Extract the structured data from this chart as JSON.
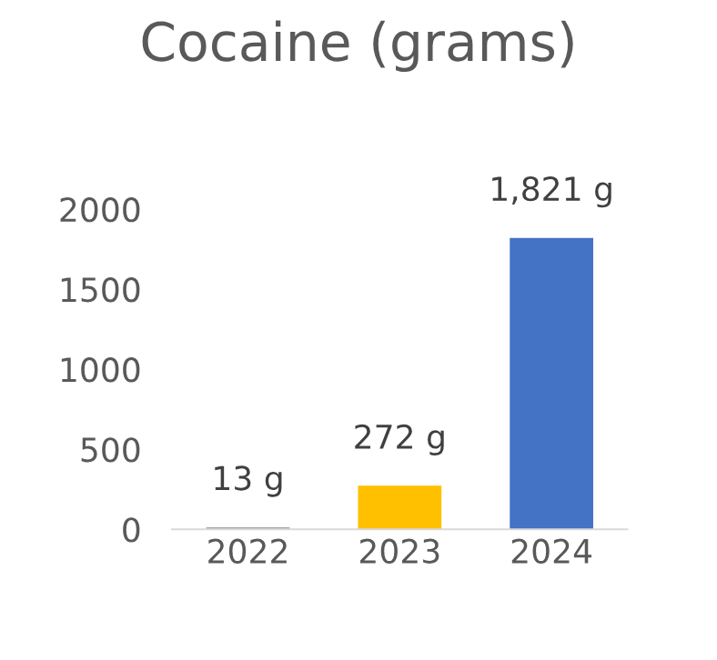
{
  "chart_data": {
    "type": "bar",
    "title": "Cocaine (grams)",
    "categories": [
      "2022",
      "2023",
      "2024"
    ],
    "values": [
      13,
      272,
      1821
    ],
    "colors": [
      "#a5a5a5",
      "#ffc000",
      "#4472c4"
    ],
    "value_labels": [
      "13 g",
      "272 g",
      "1,821 g"
    ],
    "ylim": [
      0,
      2000
    ],
    "yticks": [
      0,
      500,
      1000,
      1500,
      2000
    ],
    "grid": false,
    "legend": false
  }
}
